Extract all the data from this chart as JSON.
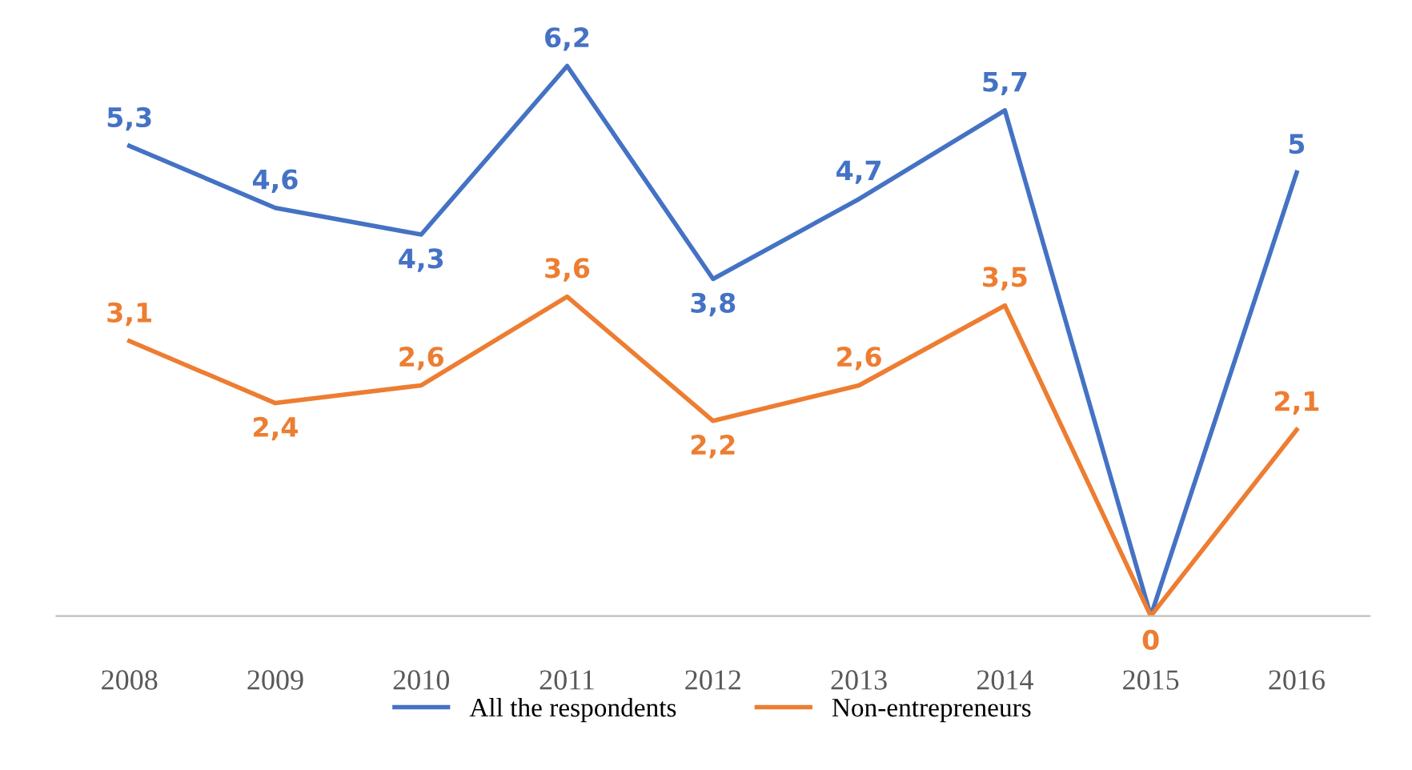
{
  "chart_data": {
    "type": "line",
    "categories": [
      "2008",
      "2009",
      "2010",
      "2011",
      "2012",
      "2013",
      "2014",
      "2015",
      "2016"
    ],
    "series": [
      {
        "name": "All the respondents",
        "color": "#4472c4",
        "values": [
          5.3,
          4.6,
          4.3,
          6.2,
          3.8,
          4.7,
          5.7,
          0,
          5
        ],
        "value_labels": [
          "5,3",
          "4,6",
          "4,3",
          "6,2",
          "3,8",
          "4,7",
          "5,7",
          null,
          "5"
        ]
      },
      {
        "name": "Non-entrepreneurs",
        "color": "#ed7d31",
        "values": [
          3.1,
          2.4,
          2.6,
          3.6,
          2.2,
          2.6,
          3.5,
          0,
          2.1
        ],
        "value_labels": [
          "3,1",
          "2,4",
          "2,6",
          "3,6",
          "2,2",
          "2,6",
          "3,5",
          "0",
          "2,1"
        ]
      }
    ],
    "legend": "bottom",
    "grid": false,
    "tick_labels": "x",
    "line_style": "solid"
  }
}
